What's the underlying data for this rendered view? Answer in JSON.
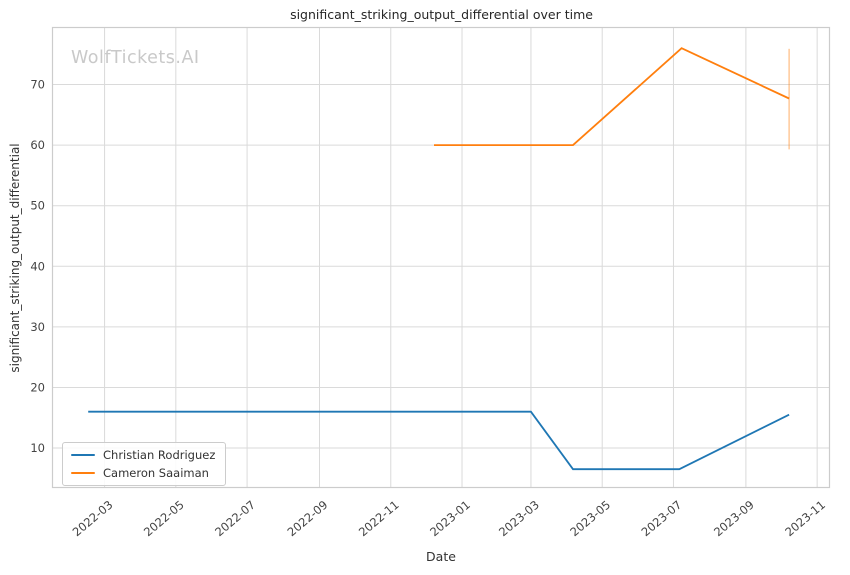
{
  "chart_data": {
    "type": "line",
    "title": "significant_striking_output_differential over time",
    "xlabel": "Date",
    "ylabel": "significant_striking_output_differential",
    "watermark": "WolfTickets.AI",
    "grid": true,
    "legend_position": "lower-left",
    "background_color": "#ffffff",
    "grid_color": "#dadada",
    "spine_color": "#cccccc",
    "tick_label_color": "#444444",
    "x_domain": [
      "2022-01-15",
      "2023-11-12"
    ],
    "ylim": [
      3.4,
      79.5
    ],
    "y_ticks": [
      10,
      20,
      30,
      40,
      50,
      60,
      70
    ],
    "x_ticks": [
      {
        "label": "2022-03",
        "date": "2022-03-01"
      },
      {
        "label": "2022-05",
        "date": "2022-05-01"
      },
      {
        "label": "2022-07",
        "date": "2022-07-01"
      },
      {
        "label": "2022-09",
        "date": "2022-09-01"
      },
      {
        "label": "2022-11",
        "date": "2022-11-01"
      },
      {
        "label": "2023-01",
        "date": "2023-01-01"
      },
      {
        "label": "2023-03",
        "date": "2023-03-01"
      },
      {
        "label": "2023-05",
        "date": "2023-05-01"
      },
      {
        "label": "2023-07",
        "date": "2023-07-01"
      },
      {
        "label": "2023-09",
        "date": "2023-09-01"
      },
      {
        "label": "2023-11",
        "date": "2023-11-01"
      }
    ],
    "series": [
      {
        "name": "Christian Rodriguez",
        "color": "#1f77b4",
        "points": [
          {
            "date": "2022-02-15",
            "value": 16
          },
          {
            "date": "2023-03-01",
            "value": 16
          },
          {
            "date": "2023-04-06",
            "value": 6.5
          },
          {
            "date": "2023-07-06",
            "value": 6.5
          },
          {
            "date": "2023-10-08",
            "value": 15.5
          }
        ]
      },
      {
        "name": "Cameron Saaiman",
        "color": "#ff7f0e",
        "points": [
          {
            "date": "2022-12-08",
            "value": 60
          },
          {
            "date": "2023-04-06",
            "value": 60
          },
          {
            "date": "2023-07-08",
            "value": 76
          },
          {
            "date": "2023-10-08",
            "value": 67.7
          }
        ],
        "error_bar": {
          "date": "2023-10-08",
          "low": 59.3,
          "high": 75.9,
          "opacity": 0.45
        }
      }
    ]
  }
}
